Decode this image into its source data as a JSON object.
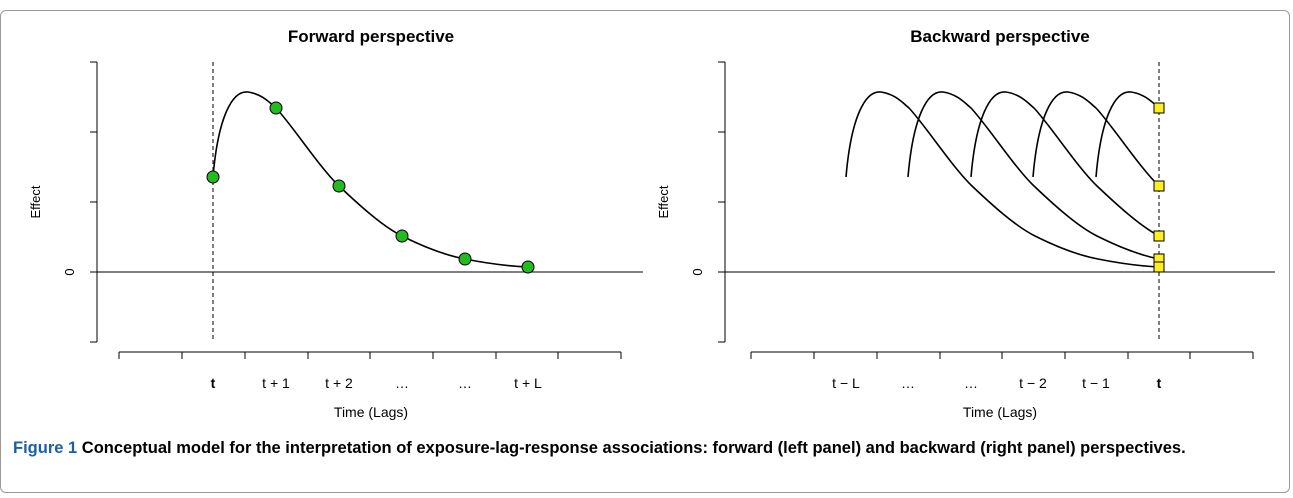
{
  "figure": {
    "label": "Figure 1",
    "caption": "Conceptual model for the interpretation of exposure-lag-response associations: forward (left panel) and backward (right panel) perspectives."
  },
  "panels": [
    {
      "title": "Forward perspective",
      "ylabel": "Effect",
      "xlabel": "Time (Lags)",
      "zero_label": "0",
      "tick_labels": [
        "t",
        "t + 1",
        "t + 2",
        "…",
        "…",
        "t + L"
      ],
      "bold_tick": "t",
      "marker": "circle",
      "marker_color": "#22bb22"
    },
    {
      "title": "Backward perspective",
      "ylabel": "Effect",
      "xlabel": "Time (Lags)",
      "zero_label": "0",
      "tick_labels": [
        "t − L",
        "…",
        "…",
        "t − 2",
        "t − 1",
        "t"
      ],
      "bold_tick": "t",
      "marker": "square",
      "marker_color": "#ffee22"
    }
  ]
}
